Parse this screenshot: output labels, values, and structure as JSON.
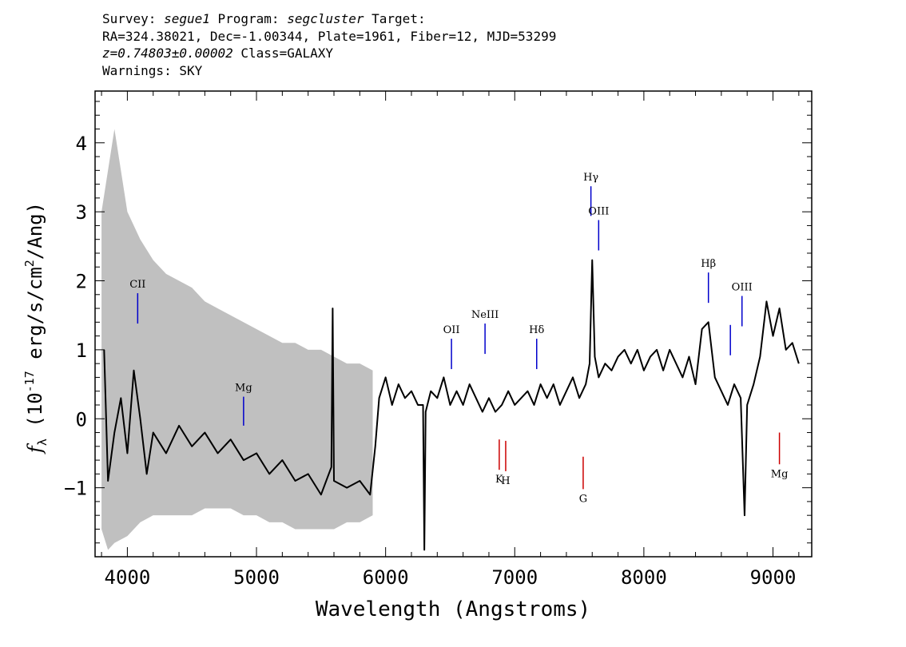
{
  "header": {
    "line1": {
      "survey_label": "Survey: ",
      "survey": "segue1",
      "program_label": " Program: ",
      "program": "segcluster",
      "target_label": " Target:"
    },
    "line2": "RA=324.38021, Dec=-1.00344, Plate=1961, Fiber=12, MJD=53299",
    "line3": {
      "z": "z=0.74803±0.00002",
      "class": " Class=GALAXY"
    },
    "line4": "Warnings: SKY"
  },
  "chart_data": {
    "type": "line",
    "xlabel": "Wavelength (Angstroms)",
    "ylabel": "f_λ (10^-17 erg/s/cm^2/Ang)",
    "xlim": [
      3750,
      9300
    ],
    "ylim": [
      -2.0,
      4.75
    ],
    "x_ticks": [
      4000,
      5000,
      6000,
      7000,
      8000,
      9000
    ],
    "y_ticks": [
      -1,
      0,
      1,
      2,
      3,
      4
    ],
    "series": [
      {
        "role": "noise-envelope",
        "color": "#c0c0c0",
        "x": [
          3800,
          3850,
          3900,
          4000,
          4100,
          4200,
          4300,
          4400,
          4500,
          4600,
          4700,
          4800,
          4900,
          5000,
          5100,
          5200,
          5300,
          5400,
          5500,
          5600,
          5700,
          5800,
          5900
        ],
        "lower": [
          -1.6,
          -1.9,
          -1.8,
          -1.7,
          -1.5,
          -1.4,
          -1.4,
          -1.4,
          -1.4,
          -1.3,
          -1.3,
          -1.3,
          -1.4,
          -1.4,
          -1.5,
          -1.5,
          -1.6,
          -1.6,
          -1.6,
          -1.6,
          -1.5,
          -1.5,
          -1.4
        ],
        "upper": [
          3.0,
          3.6,
          4.2,
          3.0,
          2.6,
          2.3,
          2.1,
          2.0,
          1.9,
          1.7,
          1.6,
          1.5,
          1.4,
          1.3,
          1.2,
          1.1,
          1.1,
          1.0,
          1.0,
          0.9,
          0.8,
          0.8,
          0.7
        ]
      },
      {
        "role": "flux",
        "color": "#000000",
        "x": [
          3820,
          3850,
          3900,
          3950,
          4000,
          4050,
          4100,
          4150,
          4200,
          4300,
          4400,
          4500,
          4600,
          4700,
          4800,
          4900,
          5000,
          5100,
          5200,
          5300,
          5400,
          5500,
          5580,
          5590,
          5600,
          5700,
          5800,
          5880,
          5920,
          5950,
          6000,
          6050,
          6100,
          6150,
          6200,
          6250,
          6290,
          6300,
          6310,
          6350,
          6400,
          6450,
          6500,
          6550,
          6600,
          6650,
          6700,
          6750,
          6800,
          6850,
          6900,
          6950,
          7000,
          7050,
          7100,
          7150,
          7200,
          7250,
          7300,
          7350,
          7400,
          7450,
          7500,
          7550,
          7580,
          7600,
          7620,
          7650,
          7700,
          7750,
          7800,
          7850,
          7900,
          7950,
          8000,
          8050,
          8100,
          8150,
          8200,
          8250,
          8300,
          8350,
          8400,
          8450,
          8500,
          8550,
          8600,
          8650,
          8700,
          8750,
          8780,
          8800,
          8850,
          8900,
          8950,
          9000,
          9050,
          9100,
          9150,
          9200
        ],
        "y": [
          1.0,
          -0.9,
          -0.2,
          0.3,
          -0.5,
          0.7,
          0.0,
          -0.8,
          -0.2,
          -0.5,
          -0.1,
          -0.4,
          -0.2,
          -0.5,
          -0.3,
          -0.6,
          -0.5,
          -0.8,
          -0.6,
          -0.9,
          -0.8,
          -1.1,
          -0.7,
          1.6,
          -0.9,
          -1.0,
          -0.9,
          -1.1,
          -0.4,
          0.3,
          0.6,
          0.2,
          0.5,
          0.3,
          0.4,
          0.2,
          0.2,
          -1.9,
          0.1,
          0.4,
          0.3,
          0.6,
          0.2,
          0.4,
          0.2,
          0.5,
          0.3,
          0.1,
          0.3,
          0.1,
          0.2,
          0.4,
          0.2,
          0.3,
          0.4,
          0.2,
          0.5,
          0.3,
          0.5,
          0.2,
          0.4,
          0.6,
          0.3,
          0.5,
          0.8,
          2.3,
          0.9,
          0.6,
          0.8,
          0.7,
          0.9,
          1.0,
          0.8,
          1.0,
          0.7,
          0.9,
          1.0,
          0.7,
          1.0,
          0.8,
          0.6,
          0.9,
          0.5,
          1.3,
          1.4,
          0.6,
          0.4,
          0.2,
          0.5,
          0.3,
          -1.4,
          0.2,
          0.5,
          0.9,
          1.7,
          1.2,
          1.6,
          1.0,
          1.1,
          0.8
        ]
      }
    ],
    "emission_lines": [
      {
        "label": "CII",
        "x": 4080,
        "color": "#0000cc",
        "y_top": 1.82,
        "y_bottom": 1.38
      },
      {
        "label": "Mg",
        "x": 4900,
        "color": "#0000cc",
        "y_top": 0.32,
        "y_bottom": -0.1
      },
      {
        "label": "OII",
        "x": 6510,
        "color": "#0000cc",
        "y_top": 1.16,
        "y_bottom": 0.72
      },
      {
        "label": "NeIII",
        "x": 6770,
        "color": "#0000cc",
        "y_top": 1.38,
        "y_bottom": 0.94
      },
      {
        "label": "Hδ",
        "x": 7170,
        "color": "#0000cc",
        "y_top": 1.16,
        "y_bottom": 0.72
      },
      {
        "label": "Hγ",
        "x": 7590,
        "color": "#0000cc",
        "y_top": 3.37,
        "y_bottom": 2.94
      },
      {
        "label": "OIII",
        "x": 7650,
        "color": "#0000cc",
        "y_top": 2.88,
        "y_bottom": 2.44
      },
      {
        "label": "Hβ",
        "x": 8500,
        "color": "#0000cc",
        "y_top": 2.12,
        "y_bottom": 1.68
      },
      {
        "label": "",
        "x": 8670,
        "color": "#0000cc",
        "y_top": 1.36,
        "y_bottom": 0.92
      },
      {
        "label": "OIII",
        "x": 8760,
        "color": "#0000cc",
        "y_top": 1.78,
        "y_bottom": 1.34
      }
    ],
    "absorption_lines": [
      {
        "label": "K",
        "x": 6880,
        "color": "#cc0000",
        "y_top": -0.3,
        "y_bottom": -0.74
      },
      {
        "label": "H",
        "x": 6930,
        "color": "#cc0000",
        "y_top": -0.32,
        "y_bottom": -0.76
      },
      {
        "label": "G",
        "x": 7530,
        "color": "#cc0000",
        "y_top": -0.55,
        "y_bottom": -1.02
      },
      {
        "label": "Mg",
        "x": 9050,
        "color": "#cc0000",
        "y_top": -0.2,
        "y_bottom": -0.66
      }
    ]
  }
}
